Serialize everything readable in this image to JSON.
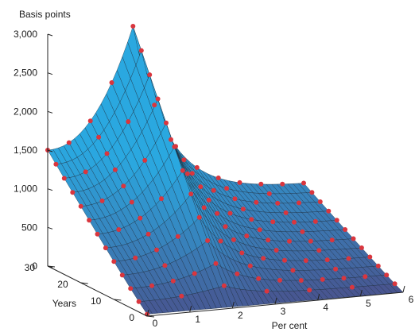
{
  "chart_data": {
    "type": "surface3d",
    "z_axis": {
      "label": "Basis points",
      "range": [
        0,
        3000
      ],
      "ticks": [
        0,
        500,
        1000,
        1500,
        2000,
        2500,
        3000
      ],
      "tick_labels": [
        "0",
        "500",
        "1,000",
        "1,500",
        "2,000",
        "2,500",
        "3,000"
      ]
    },
    "years_axis": {
      "label": "Years",
      "range": [
        0,
        30
      ],
      "ticks": [
        0,
        10,
        20,
        30
      ],
      "tick_labels": [
        "0",
        "10",
        "20",
        "30"
      ]
    },
    "percent_axis": {
      "label": "Per cent",
      "range": [
        0,
        6
      ],
      "ticks": [
        0,
        1,
        2,
        3,
        4,
        5,
        6
      ],
      "tick_labels": [
        "0",
        "1",
        "2",
        "3",
        "4",
        "5",
        "6"
      ]
    },
    "surface": {
      "description": "Value rises toward low per-cent and long maturities",
      "edge_values": {
        "percent_0_years_30": 1500,
        "percent_2_years_30": 3000,
        "percent_6_years_30": 750,
        "percent_0_years_0": 60,
        "percent_6_years_0": 10
      }
    },
    "markers": {
      "color": "#d9363e"
    },
    "colors": {
      "surface_low": "#4a4f8a",
      "surface_high": "#2aa8e0",
      "mesh": "#1b2a3a"
    },
    "grid": false
  }
}
